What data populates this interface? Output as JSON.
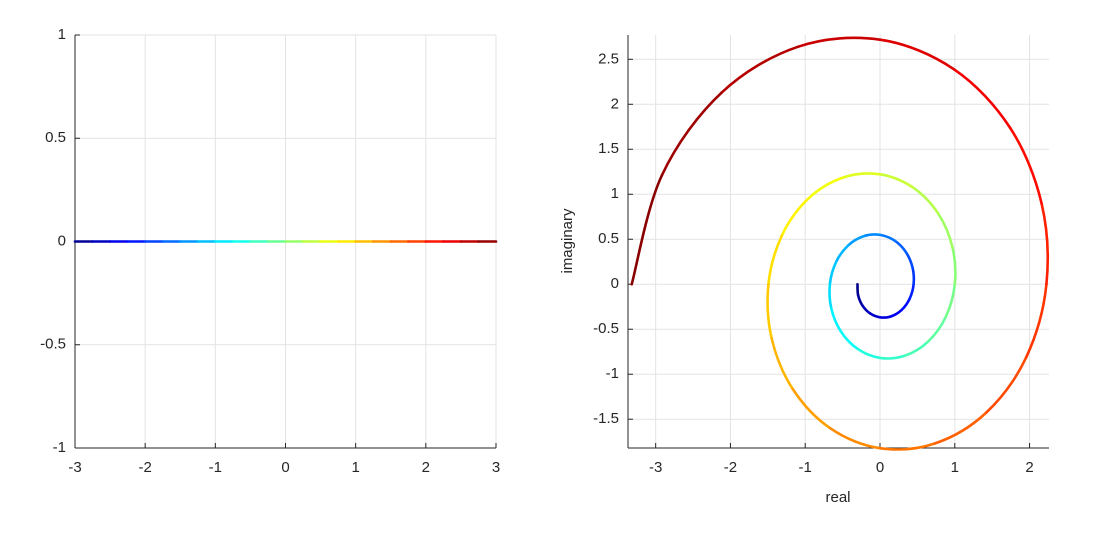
{
  "chart_data": [
    {
      "type": "line",
      "colormap": "jet",
      "grid": true,
      "x": [
        -3,
        -2.75,
        -2.5,
        -2.25,
        -2,
        -1.75,
        -1.5,
        -1.25,
        -1,
        -0.75,
        -0.5,
        -0.25,
        0,
        0.25,
        0.5,
        0.75,
        1,
        1.25,
        1.5,
        1.75,
        2,
        2.25,
        2.5,
        2.75,
        3
      ],
      "y": [
        0,
        0,
        0,
        0,
        0,
        0,
        0,
        0,
        0,
        0,
        0,
        0,
        0,
        0,
        0,
        0,
        0,
        0,
        0,
        0,
        0,
        0,
        0,
        0,
        0
      ],
      "xlim": [
        -3,
        3
      ],
      "ylim": [
        -1,
        1
      ],
      "xticks": [
        -3,
        -2,
        -1,
        0,
        1,
        2,
        3
      ],
      "yticks": [
        -1,
        -0.5,
        0,
        0.5,
        1
      ]
    },
    {
      "type": "line",
      "colormap": "jet",
      "grid": true,
      "xlabel": "real",
      "ylabel": "imaginary",
      "x": [
        -0.3012,
        -0.2925,
        -0.2354,
        -0.1339,
        0,
        0.148,
        0.2875,
        0.3949,
        0.4493,
        0.4364,
        0.3511,
        0.1998,
        0,
        -0.2208,
        -0.4289,
        -0.5891,
        -0.6703,
        -0.6511,
        -0.5238,
        -0.298,
        0,
        0.3294,
        0.6398,
        0.8788,
        1,
        0.9713,
        0.7815,
        0.4446,
        0,
        -0.4914,
        -0.9545,
        -1.3111,
        -1.4918,
        -1.449,
        -1.1658,
        -0.6633,
        0,
        0.7331,
        1.424,
        1.9559,
        2.2255,
        2.1616,
        1.7392,
        0.9895,
        0,
        -1.0936,
        -2.1243,
        -2.9179,
        -3.3201
      ],
      "y": [
        0,
        -0.1212,
        -0.2354,
        -0.3233,
        -0.3679,
        -0.3573,
        -0.2875,
        -0.1636,
        0,
        0.1808,
        0.3511,
        0.4823,
        0.5488,
        0.533,
        0.4289,
        0.244,
        0,
        -0.2697,
        -0.5238,
        -0.7195,
        -0.8187,
        -0.7952,
        -0.6398,
        -0.364,
        0,
        0.4023,
        0.7815,
        1.0734,
        1.2214,
        1.1863,
        0.9545,
        0.5431,
        0,
        -0.6002,
        -1.1658,
        -1.6014,
        -1.8221,
        -1.7697,
        -1.424,
        -0.8102,
        0,
        0.8954,
        1.7392,
        2.3889,
        2.7183,
        2.6402,
        2.1243,
        1.2086,
        0
      ],
      "xlim": [
        -3.37,
        2.26
      ],
      "ylim": [
        -1.82,
        2.77
      ],
      "xticks": [
        -3,
        -2,
        -1,
        0,
        1,
        2
      ],
      "yticks": [
        -1.5,
        -1,
        -0.5,
        0,
        0.5,
        1,
        1.5,
        2,
        2.5
      ]
    }
  ]
}
